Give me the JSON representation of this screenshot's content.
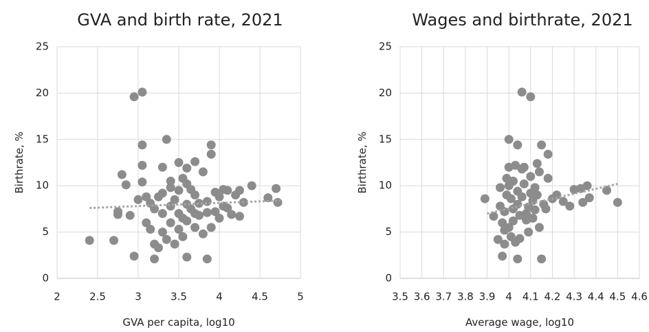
{
  "chart_data": [
    {
      "type": "scatter",
      "title": "GVA and birth rate, 2021",
      "xlabel": "GVA per capita, log10",
      "ylabel": "Birthrate, %",
      "color": "#8c8c8c",
      "grid": true,
      "xlim": [
        2,
        5
      ],
      "xticks": [
        2,
        2.5,
        3,
        3.5,
        4,
        4.5,
        5
      ],
      "ylim": [
        0,
        25
      ],
      "yticks": [
        0,
        5,
        10,
        15,
        20,
        25
      ],
      "x": [
        2.4,
        2.7,
        2.75,
        2.75,
        2.8,
        2.85,
        2.9,
        2.95,
        2.95,
        3.05,
        3.05,
        3.05,
        3.05,
        3.0,
        3.1,
        3.15,
        3.2,
        3.2,
        3.25,
        3.3,
        3.35,
        3.4,
        3.5,
        3.6,
        3.6,
        3.7,
        3.8,
        3.85,
        3.9,
        3.9,
        4.05,
        4.1,
        4.2,
        4.25,
        4.25,
        4.3,
        4.4,
        4.6,
        4.7,
        4.72,
        3.3,
        3.4,
        3.5,
        3.6,
        3.7,
        3.45,
        3.55,
        3.65,
        3.75,
        3.85,
        3.95,
        4.0,
        3.2,
        3.3,
        3.4,
        3.5,
        3.6,
        3.7,
        3.8,
        3.9,
        3.35,
        3.45,
        3.55,
        3.25,
        3.15,
        3.65,
        3.75,
        3.85,
        4.0,
        4.1,
        4.15,
        3.5,
        3.6,
        3.7,
        3.4,
        3.55,
        3.3,
        3.1,
        3.95,
        4.05
      ],
      "y": [
        4.1,
        4.1,
        7.2,
        6.9,
        11.2,
        10.1,
        6.8,
        19.6,
        2.4,
        20.1,
        14.4,
        12.2,
        10.4,
        8.5,
        6,
        5.3,
        3.7,
        2.1,
        3.3,
        12.0,
        15.0,
        10.5,
        12.5,
        2.3,
        11.9,
        12.6,
        11.5,
        2.1,
        14.4,
        13.4,
        9.6,
        9.5,
        9.0,
        9.5,
        6.7,
        8.2,
        10.0,
        8.7,
        9.7,
        8.2,
        5,
        6,
        7,
        8,
        9,
        8.5,
        6.5,
        7.5,
        6.8,
        8.3,
        7.2,
        6.5,
        7.5,
        9.2,
        7.8,
        9.5,
        10.2,
        5.5,
        4.8,
        5.5,
        4.2,
        3.7,
        4.5,
        8.8,
        8.1,
        9.6,
        8.1,
        7.1,
        8.8,
        7.6,
        6.9,
        5.3,
        6.2,
        7.0,
        9.8,
        10.8,
        7.0,
        8.8,
        9.3,
        7.8
      ],
      "trendline": {
        "x": [
          2.4,
          4.75
        ],
        "y": [
          7.6,
          8.4
        ]
      }
    },
    {
      "type": "scatter",
      "title": "Wages and birthrate, 2021",
      "xlabel": "Average wage, log10",
      "ylabel": "Birthrate, %",
      "color": "#8c8c8c",
      "grid": true,
      "xlim": [
        3.5,
        4.6
      ],
      "xticks": [
        3.5,
        3.6,
        3.7,
        3.8,
        3.9,
        4,
        4.1,
        4.2,
        4.3,
        4.4,
        4.5,
        4.6
      ],
      "ylim": [
        0,
        25
      ],
      "yticks": [
        0,
        5,
        10,
        15,
        20,
        25
      ],
      "x": [
        3.89,
        3.93,
        3.95,
        3.97,
        3.98,
        4.0,
        4.0,
        4.02,
        4.04,
        4.04,
        4.06,
        4.1,
        4.15,
        4.15,
        4.18,
        4.18,
        4.2,
        4.22,
        4.25,
        4.28,
        4.3,
        4.33,
        4.34,
        4.36,
        4.37,
        4.45,
        4.5,
        3.96,
        3.98,
        4.0,
        4.02,
        4.04,
        4.06,
        4.08,
        4.1,
        4.12,
        4.14,
        3.97,
        3.99,
        4.01,
        4.03,
        4.05,
        4.07,
        4.09,
        4.11,
        4.13,
        3.96,
        4.0,
        4.04,
        4.08,
        4.12,
        4.16,
        3.98,
        4.02,
        4.06,
        4.1,
        4.14,
        4.01,
        4.05,
        4.09,
        4.03,
        4.07,
        4.11,
        3.99,
        4.13,
        4.17
      ],
      "y": [
        8.6,
        6.7,
        4.2,
        2.4,
        3.7,
        15.0,
        12.0,
        7.5,
        14.4,
        2.1,
        20.1,
        19.6,
        14.4,
        2.1,
        13.4,
        10.8,
        8.6,
        9.0,
        8.3,
        7.8,
        9.6,
        9.7,
        8.2,
        10.0,
        8.7,
        9.5,
        8.2,
        9.8,
        7.2,
        5.5,
        10.5,
        8.0,
        11.8,
        6.3,
        9.2,
        7.4,
        11.5,
        6.0,
        9.0,
        4.5,
        12.2,
        6.8,
        10.2,
        5.0,
        8.4,
        12.4,
        7.8,
        10.0,
        9.4,
        7.0,
        9.8,
        8.0,
        5.2,
        6.2,
        8.8,
        11.0,
        5.5,
        8.6,
        4.3,
        7.7,
        3.9,
        12.0,
        6.5,
        10.8,
        9.0,
        7.5
      ],
      "trendline": {
        "x": [
          3.9,
          4.5
        ],
        "y": [
          7.0,
          10.2
        ]
      }
    }
  ]
}
